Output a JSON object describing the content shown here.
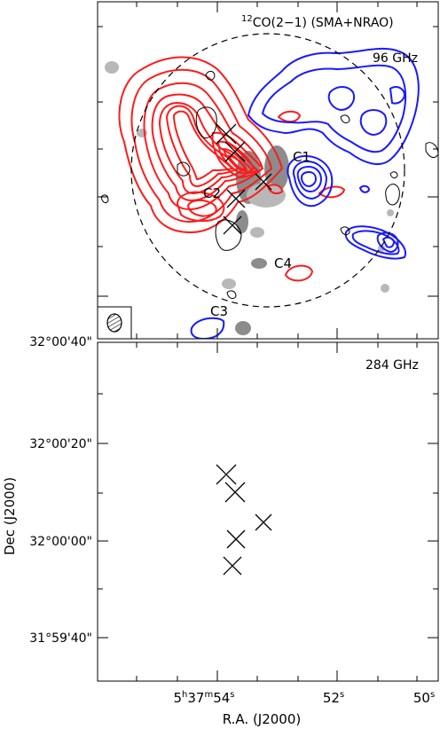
{
  "panels": {
    "top": {
      "title_iso": "12",
      "title_rest": "CO(2−1) (SMA+NRAO)",
      "freq": "96 GHz",
      "sources": [
        "C1",
        "C2",
        "C3",
        "C4"
      ]
    },
    "bottom": {
      "freq": "284 GHz"
    }
  },
  "axes": {
    "x_label": "R.A. (J2000)",
    "x_ticks": [
      {
        "h": "5",
        "m": "37",
        "s": "54"
      },
      {
        "s": "52"
      },
      {
        "s": "50"
      }
    ],
    "y_label": "Dec (J2000)",
    "y_ticks_top": [
      "32°00'40\""
    ],
    "y_ticks_bottom": [
      "32°00'20\"",
      "32°00'00\"",
      "31°59'40\""
    ]
  },
  "colors": {
    "redshifted": "#ff1a1a",
    "blueshifted": "#1a1aff",
    "continuum": "#8c8c8c"
  }
}
